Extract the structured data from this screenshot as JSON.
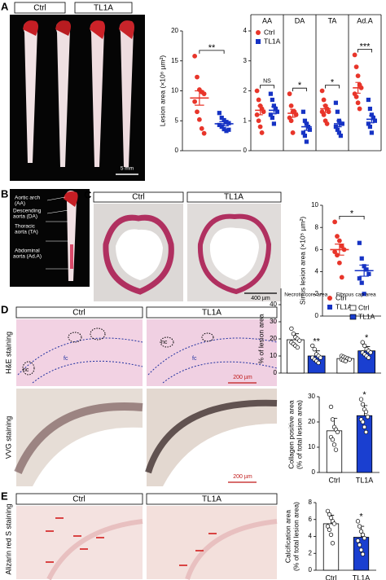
{
  "panel_letters": [
    "A",
    "B",
    "C",
    "D",
    "E"
  ],
  "panel_a": {
    "headers": [
      "Ctrl",
      "TL1A"
    ],
    "scale_bar": "5 mm"
  },
  "panel_b": {
    "labels": [
      [
        "Aortic arch",
        "(AA)"
      ],
      [
        "Descending",
        "aorta (DA)"
      ],
      [
        "Thoracic",
        "aorta (TA)"
      ],
      [
        "Abdominal",
        "aorta (Ad.A)"
      ]
    ]
  },
  "panel_c": {
    "headers": [
      "Ctrl",
      "TL1A"
    ],
    "scale_bar": "400 µm"
  },
  "panel_d": {
    "headers": [
      "Ctrl",
      "TL1A"
    ],
    "rows": [
      "H&E staining",
      "VVG staining"
    ],
    "scale_bar": "200 µm",
    "necrotic_core_label": "nc",
    "fibrous_cap_label": "fc"
  },
  "panel_e": {
    "headers": [
      "Ctrl",
      "TL1A"
    ],
    "row": "Alizarin red S staining"
  },
  "chart_data": [
    {
      "type": "dot",
      "ylabel": [
        "Lesion area (×10⁶ µm²)"
      ],
      "ylim": [
        0,
        20
      ],
      "yticks": [
        0,
        5,
        10,
        15,
        20
      ],
      "categories": [
        null
      ],
      "series": [
        {
          "color": "#e8352a",
          "marker": "circle",
          "values": [
            8.8
          ],
          "errors": [
            1.2
          ],
          "points": [
            [
              15.8,
              12.3,
              10.2,
              9.8,
              9.5,
              8.2,
              6.5,
              5.2,
              3.7,
              2.9
            ]
          ]
        },
        {
          "color": "#1633c4",
          "marker": "square",
          "values": [
            4.5
          ],
          "errors": [
            0.35
          ],
          "points": [
            [
              6.3,
              5.5,
              5.1,
              4.8,
              4.6,
              4.3,
              4.0,
              3.6,
              3.3,
              3.5
            ]
          ]
        }
      ],
      "significance": [
        "**"
      ],
      "bracket": true
    },
    {
      "type": "dot",
      "ylim": [
        0,
        4
      ],
      "yticks": [
        0,
        1,
        2,
        3,
        4
      ],
      "categories": [
        "AA",
        "DA",
        "TA",
        "Ad.A"
      ],
      "category_position": "top",
      "dividers": true,
      "series": [
        {
          "name": "Ctrl",
          "color": "#e8352a",
          "marker": "circle",
          "values": [
            1.35,
            1.25,
            1.4,
            2.1
          ],
          "errors": [
            0.15,
            0.13,
            0.12,
            0.18
          ],
          "points": [
            [
              2.0,
              1.7,
              1.5,
              1.4,
              1.3,
              1.2,
              1.0,
              0.8,
              0.6
            ],
            [
              1.9,
              1.5,
              1.3,
              1.3,
              1.2,
              1.1,
              1.0,
              0.6
            ],
            [
              2.0,
              1.7,
              1.5,
              1.4,
              1.3,
              1.3,
              1.2,
              1.0,
              0.9
            ],
            [
              3.2,
              2.8,
              2.5,
              2.2,
              2.1,
              1.9,
              1.8,
              1.6,
              1.4
            ]
          ]
        },
        {
          "name": "TL1A",
          "color": "#1633c4",
          "marker": "square",
          "values": [
            1.35,
            0.8,
            0.9,
            1.05
          ],
          "errors": [
            0.12,
            0.12,
            0.1,
            0.12
          ],
          "points": [
            [
              1.9,
              1.7,
              1.5,
              1.4,
              1.3,
              1.2,
              1.1,
              0.9
            ],
            [
              1.3,
              1.0,
              0.9,
              0.8,
              0.7,
              0.6,
              0.5,
              0.3
            ],
            [
              1.6,
              1.3,
              1.0,
              0.9,
              0.9,
              0.8,
              0.7,
              0.6,
              0.5
            ],
            [
              1.7,
              1.4,
              1.2,
              1.1,
              1.0,
              0.9,
              0.8,
              0.6
            ]
          ]
        }
      ],
      "significance": [
        "NS",
        "*",
        "*",
        "***"
      ],
      "bracket": true,
      "legend": "upper left"
    },
    {
      "type": "dot",
      "ylabel": [
        "Sinus lesion area (×10⁵ µm²)"
      ],
      "ylim": [
        0,
        10
      ],
      "yticks": [
        0,
        2,
        4,
        6,
        8,
        10
      ],
      "categories": [
        null
      ],
      "series": [
        {
          "name": "Ctrl",
          "color": "#e8352a",
          "marker": "circle",
          "values": [
            6.0
          ],
          "errors": [
            0.5
          ],
          "points": [
            [
              8.5,
              7.2,
              6.8,
              6.3,
              6.0,
              5.8,
              5.5,
              4.8,
              3.5
            ]
          ]
        },
        {
          "name": "TL1A",
          "color": "#1633c4",
          "marker": "square",
          "values": [
            4.1
          ],
          "errors": [
            0.5
          ],
          "points": [
            [
              6.6,
              5.2,
              4.5,
              4.2,
              3.8,
              3.4,
              3.0,
              2.0
            ]
          ]
        }
      ],
      "significance": [
        "*"
      ],
      "bracket": true,
      "legend": "lower left"
    },
    {
      "type": "bar",
      "ylabel": [
        "% of lesion area"
      ],
      "ylim": [
        0,
        40
      ],
      "yticks": [
        0,
        10,
        20,
        30,
        40
      ],
      "categories": [
        "Necrotic core area",
        "Fibrous cap area"
      ],
      "category_position": "top",
      "series": [
        {
          "name": "Ctrl",
          "color": "#ffffff",
          "values": [
            19.5,
            8.5
          ],
          "errors": [
            3.5,
            1.0
          ],
          "points": [
            [
              26,
              23,
              21,
              20,
              19,
              18,
              17,
              16,
              15
            ],
            [
              10,
              9.5,
              9,
              8.5,
              8,
              8,
              7.5,
              7
            ]
          ]
        },
        {
          "name": "TL1A",
          "color": "#1a3fd0",
          "values": [
            10,
            13
          ],
          "errors": [
            3,
            2.5
          ],
          "points": [
            [
              16,
              14,
              11,
              10,
              9,
              9,
              8,
              7,
              6
            ],
            [
              18,
              16,
              14,
              13,
              12,
              12,
              11,
              10,
              9
            ]
          ]
        }
      ],
      "significance": [
        "**",
        "*"
      ],
      "bracket": false,
      "legend": "upper right"
    },
    {
      "type": "bar",
      "ylabel": [
        "Collagen positive area",
        "(% of total lesion area)"
      ],
      "ylim": [
        0,
        30
      ],
      "yticks": [
        0,
        10,
        20,
        30
      ],
      "categories": [
        "Ctrl",
        "TL1A"
      ],
      "series": [
        {
          "colors": [
            "#ffffff",
            "#1a3fd0"
          ],
          "values": [
            16.5,
            22.5
          ],
          "errors": [
            5,
            4
          ],
          "points": [
            [
              26,
              21,
              18,
              17,
              16,
              14,
              13,
              11,
              9
            ],
            [
              29,
              27,
              25,
              24,
              22,
              21,
              20,
              18,
              16
            ]
          ]
        }
      ],
      "significance": [
        null,
        "*"
      ],
      "bracket": false
    },
    {
      "type": "bar",
      "ylabel": [
        "Calcification area",
        "(% of total lesion area)"
      ],
      "ylim": [
        0,
        8
      ],
      "yticks": [
        0,
        2,
        4,
        6,
        8
      ],
      "categories": [
        "Ctrl",
        "TL1A"
      ],
      "series": [
        {
          "colors": [
            "#ffffff",
            "#1a3fd0"
          ],
          "values": [
            5.5,
            3.9
          ],
          "errors": [
            1,
            1.3
          ],
          "points": [
            [
              7.0,
              6.6,
              6.2,
              5.8,
              5.5,
              5.2,
              4.8,
              4.2,
              3.2
            ],
            [
              5.8,
              5.2,
              4.6,
              4.2,
              3.8,
              3.5,
              3.0,
              2.4,
              1.9
            ]
          ]
        }
      ],
      "significance": [
        null,
        "*"
      ],
      "bracket": false
    }
  ]
}
